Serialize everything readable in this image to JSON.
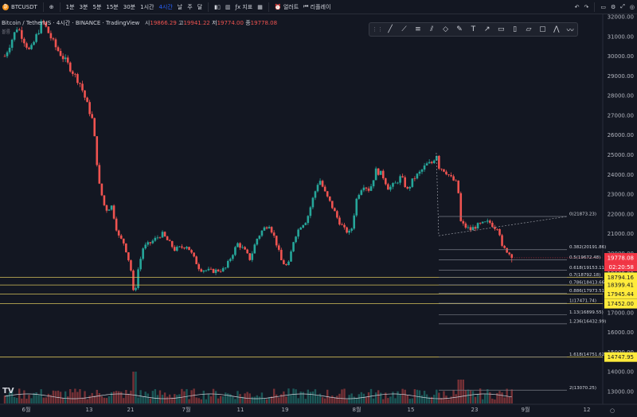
{
  "toolbar": {
    "symbol": "BTCUSDT",
    "add_icon": "plus-icon",
    "intervals": [
      "1분",
      "3분",
      "5분",
      "15분",
      "30분",
      "1시간",
      "4시간",
      "날",
      "주",
      "달"
    ],
    "active_interval": "4시간",
    "indicators_label": "지표",
    "alert_label": "얼러트",
    "replay_label": "리플레이",
    "colors": {
      "accent": "#2962ff",
      "bg": "#131722"
    }
  },
  "legend": {
    "title": "Bitcoin / TetherUS · 4시간 · BINANCE · TradingView",
    "ohlc": [
      {
        "label": "시",
        "value": "19866.29"
      },
      {
        "label": "고",
        "value": "19941.22"
      },
      {
        "label": "저",
        "value": "19774.00"
      },
      {
        "label": "종",
        "value": "19778.08"
      }
    ],
    "volume_label": "볼륨"
  },
  "drawing_toolbar": {
    "icons": [
      "grip-icon",
      "trend-line-icon",
      "ray-icon",
      "fib-icon",
      "channel-icon",
      "ellipse-icon",
      "brush-icon",
      "text-icon",
      "arrow-icon",
      "note-icon",
      "callout-icon",
      "price-label-icon",
      "range-icon",
      "xabcd-pattern-icon",
      "elliott-wave-icon"
    ]
  },
  "chart_data": {
    "type": "candlestick",
    "symbol": "BTCUSDT",
    "ylim": [
      12500,
      32300
    ],
    "y_ticks": [
      13000,
      14000,
      15000,
      16000,
      17000,
      18000,
      19000,
      20000,
      21000,
      22000,
      23000,
      24000,
      25000,
      26000,
      27000,
      28000,
      29000,
      30000,
      31000,
      32000
    ],
    "x_ticks": [
      "6월",
      "13",
      "21",
      "7월",
      "11",
      "19",
      "8월",
      "15",
      "23",
      "9월",
      "12"
    ],
    "last_price": 19778.08,
    "countdown": "02:20:58",
    "price_path": [
      [
        0,
        30000
      ],
      [
        2,
        31500
      ],
      [
        4,
        30200
      ],
      [
        6,
        31800
      ],
      [
        8,
        30500
      ],
      [
        10,
        29600
      ],
      [
        12,
        28600
      ],
      [
        14,
        26700
      ],
      [
        15,
        23500
      ],
      [
        16,
        22200
      ],
      [
        17,
        22400
      ],
      [
        18,
        20900
      ],
      [
        19,
        20500
      ],
      [
        20,
        19300
      ],
      [
        20.6,
        17600
      ],
      [
        21,
        18900
      ],
      [
        22,
        20300
      ],
      [
        23,
        20500
      ],
      [
        25,
        21000
      ],
      [
        27,
        20200
      ],
      [
        29,
        20400
      ],
      [
        31,
        19200
      ],
      [
        33,
        19100
      ],
      [
        35,
        19200
      ],
      [
        37,
        20500
      ],
      [
        38,
        20200
      ],
      [
        39,
        19700
      ],
      [
        40,
        20700
      ],
      [
        41,
        21200
      ],
      [
        42,
        21500
      ],
      [
        43,
        20700
      ],
      [
        44,
        19600
      ],
      [
        45,
        19300
      ],
      [
        46,
        20800
      ],
      [
        47,
        21400
      ],
      [
        48,
        21700
      ],
      [
        49,
        22800
      ],
      [
        50,
        23800
      ],
      [
        51,
        23000
      ],
      [
        52,
        22400
      ],
      [
        53,
        21700
      ],
      [
        54,
        21200
      ],
      [
        55,
        21000
      ],
      [
        56,
        22900
      ],
      [
        57,
        23500
      ],
      [
        58,
        23200
      ],
      [
        59,
        24200
      ],
      [
        60,
        24000
      ],
      [
        61,
        23300
      ],
      [
        62,
        23500
      ],
      [
        63,
        23900
      ],
      [
        64,
        23200
      ],
      [
        65,
        23800
      ],
      [
        66,
        24100
      ],
      [
        67,
        24500
      ],
      [
        68,
        24600
      ],
      [
        68.6,
        25100
      ],
      [
        69,
        24400
      ],
      [
        70,
        24200
      ],
      [
        71,
        23800
      ],
      [
        72,
        23500
      ],
      [
        72.5,
        21600
      ],
      [
        73,
        21400
      ],
      [
        74,
        21200
      ],
      [
        75,
        21400
      ],
      [
        76,
        21500
      ],
      [
        77,
        21600
      ],
      [
        78,
        21300
      ],
      [
        78.5,
        21400
      ],
      [
        79,
        20300
      ],
      [
        80,
        20100
      ],
      [
        80.6,
        19778
      ]
    ],
    "fib_retracement": {
      "levels": [
        {
          "ratio": "0",
          "price": 21873.23
        },
        {
          "ratio": "0.382",
          "price": 20191.86
        },
        {
          "ratio": "0.5",
          "price": 19672.48
        },
        {
          "ratio": "0.618",
          "price": 19153.11
        },
        {
          "ratio": "0.7",
          "price": 18792.18
        },
        {
          "ratio": "0.786",
          "price": 18413.66
        },
        {
          "ratio": "0.886",
          "price": 17973.51
        },
        {
          "ratio": "1",
          "price": 17471.74
        },
        {
          "ratio": "1.13",
          "price": 16899.55
        },
        {
          "ratio": "1.236",
          "price": 16432.99
        },
        {
          "ratio": "1.618",
          "price": 14751.62
        },
        {
          "ratio": "2",
          "price": 13070.25
        }
      ]
    },
    "horizontal_lines": [
      18794.16,
      18399.41,
      17945.44,
      17452.0,
      14747.95
    ],
    "price_tags": [
      {
        "value": "19778.08",
        "color": "#f23645",
        "text_color": "#ffffff"
      },
      {
        "value": "18794.16",
        "color": "#ffeb3b",
        "text_color": "#131722"
      },
      {
        "value": "18399.41",
        "color": "#ffeb3b",
        "text_color": "#131722"
      },
      {
        "value": "17945.44",
        "color": "#ffeb3b",
        "text_color": "#131722"
      },
      {
        "value": "17452.00",
        "color": "#ffeb3b",
        "text_color": "#131722"
      },
      {
        "value": "14747.95",
        "color": "#ffeb3b",
        "text_color": "#131722"
      }
    ],
    "colors": {
      "up": "#26a69a",
      "down": "#ef5350",
      "fib": "#787b86",
      "hline": "#d4c05a"
    },
    "grid": false
  }
}
